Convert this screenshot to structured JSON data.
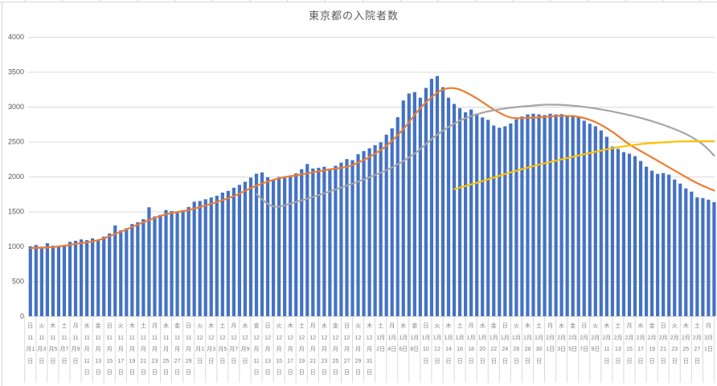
{
  "chart_data": {
    "type": "combo_bar_line",
    "title": "東京都の入院者数",
    "legend": "none",
    "grid": "horizontal",
    "y_axis": {
      "min": 0,
      "max": 4000,
      "tick_interval": 500,
      "ticks": [
        0,
        500,
        1000,
        1500,
        2000,
        2500,
        3000,
        3500,
        4000
      ]
    },
    "x_axis": {
      "label_every_n_bars": 2,
      "labels": [
        "日 11月1日",
        "火 11月3日",
        "木 11月5日",
        "土 11月7日",
        "月 11月9日",
        "水 11月11日",
        "金 11月13日",
        "日 11月15日",
        "火 11月17日",
        "木 11月19日",
        "土 11月21日",
        "月 11月23日",
        "水 11月25日",
        "金 11月27日",
        "日 11月29日",
        "火 12月1日",
        "木 12月3日",
        "土 12月5日",
        "月 12月7日",
        "水 12月9日",
        "金 12月11日",
        "日 12月13日",
        "火 12月15日",
        "木 12月17日",
        "土 12月19日",
        "月 12月21日",
        "水 12月23日",
        "金 12月25日",
        "日 12月27日",
        "火 12月29日",
        "木 12月31日",
        "土 1月2日",
        "月 1月4日",
        "水 1月6日",
        "金 1月8日",
        "日 1月10日",
        "火 1月12日",
        "木 1月14日",
        "土 1月16日",
        "月 1月18日",
        "水 1月20日",
        "金 1月22日",
        "日 1月24日",
        "火 1月26日",
        "木 1月28日",
        "土 1月30日",
        "月 2月1日",
        "水 2月3日",
        "金 2月5日",
        "日 2月7日",
        "火 2月9日",
        "木 2月11日",
        "土 2月13日",
        "月 2月15日",
        "水 2月17日",
        "金 2月19日",
        "日 2月21日",
        "火 2月23日",
        "木 2月25日",
        "土 2月27日",
        "月 3月1日"
      ]
    },
    "bars": {
      "color": "#4472C4",
      "values": [
        1000,
        1020,
        995,
        1045,
        1010,
        1000,
        1015,
        1065,
        1080,
        1100,
        1090,
        1115,
        1085,
        1140,
        1185,
        1300,
        1230,
        1260,
        1320,
        1345,
        1390,
        1560,
        1430,
        1450,
        1520,
        1505,
        1480,
        1520,
        1565,
        1640,
        1650,
        1675,
        1700,
        1725,
        1770,
        1795,
        1840,
        1880,
        1925,
        1985,
        2040,
        2060,
        1990,
        1960,
        1995,
        2005,
        2015,
        2045,
        2105,
        2180,
        2115,
        2125,
        2140,
        2115,
        2155,
        2200,
        2250,
        2235,
        2320,
        2365,
        2405,
        2450,
        2490,
        2600,
        2690,
        2850,
        3090,
        3190,
        3210,
        3130,
        3270,
        3400,
        3440,
        3280,
        3130,
        3040,
        2980,
        2920,
        2960,
        2900,
        2846,
        2812,
        2730,
        2700,
        2720,
        2760,
        2820,
        2860,
        2890,
        2900,
        2890,
        2880,
        2900,
        2890,
        2895,
        2870,
        2880,
        2845,
        2800,
        2757,
        2720,
        2660,
        2570,
        2430,
        2396,
        2350,
        2327,
        2292,
        2223,
        2142,
        2084,
        2038,
        2050,
        2027,
        1957,
        1899,
        1830,
        1784,
        1703,
        1692,
        1669,
        1634
      ]
    },
    "series": [
      {
        "id": "orange-line",
        "color": "#ED7D31",
        "points": [
          [
            0,
            975
          ],
          [
            4,
            990
          ],
          [
            8,
            1035
          ],
          [
            12,
            1090
          ],
          [
            16,
            1210
          ],
          [
            20,
            1345
          ],
          [
            24,
            1460
          ],
          [
            28,
            1520
          ],
          [
            32,
            1610
          ],
          [
            36,
            1720
          ],
          [
            40,
            1870
          ],
          [
            44,
            1975
          ],
          [
            48,
            2030
          ],
          [
            52,
            2090
          ],
          [
            56,
            2140
          ],
          [
            58,
            2200
          ],
          [
            60,
            2280
          ],
          [
            63,
            2440
          ],
          [
            66,
            2680
          ],
          [
            69,
            2980
          ],
          [
            72,
            3200
          ],
          [
            74,
            3265
          ],
          [
            76,
            3245
          ],
          [
            79,
            3120
          ],
          [
            82,
            2960
          ],
          [
            85,
            2845
          ],
          [
            88,
            2840
          ],
          [
            91,
            2855
          ],
          [
            94,
            2870
          ],
          [
            97,
            2855
          ],
          [
            100,
            2780
          ],
          [
            103,
            2640
          ],
          [
            106,
            2460
          ],
          [
            109,
            2320
          ],
          [
            112,
            2180
          ],
          [
            115,
            2040
          ],
          [
            118,
            1905
          ],
          [
            121,
            1800
          ]
        ]
      },
      {
        "id": "gray-line",
        "color": "#A5A5A5",
        "points": [
          [
            40,
            1750
          ],
          [
            42,
            1610
          ],
          [
            44,
            1570
          ],
          [
            48,
            1660
          ],
          [
            52,
            1760
          ],
          [
            56,
            1870
          ],
          [
            60,
            1990
          ],
          [
            64,
            2130
          ],
          [
            68,
            2330
          ],
          [
            72,
            2600
          ],
          [
            76,
            2800
          ],
          [
            80,
            2915
          ],
          [
            84,
            2975
          ],
          [
            88,
            3010
          ],
          [
            92,
            3030
          ],
          [
            96,
            3015
          ],
          [
            100,
            2975
          ],
          [
            104,
            2915
          ],
          [
            108,
            2840
          ],
          [
            112,
            2740
          ],
          [
            116,
            2610
          ],
          [
            119,
            2460
          ],
          [
            121,
            2300
          ]
        ]
      },
      {
        "id": "yellow-line",
        "color": "#FFC000",
        "points": [
          [
            75,
            1820
          ],
          [
            80,
            1935
          ],
          [
            85,
            2060
          ],
          [
            90,
            2170
          ],
          [
            95,
            2265
          ],
          [
            100,
            2355
          ],
          [
            104,
            2420
          ],
          [
            108,
            2465
          ],
          [
            112,
            2490
          ],
          [
            116,
            2505
          ],
          [
            121,
            2505
          ]
        ]
      }
    ]
  },
  "frame": {
    "background": "#FFFFFF",
    "gridline_color": "#D9D9D9",
    "tick_separator_color": "#D9D9D9",
    "axis_text_color": "#595959",
    "x_label_text_color": "#7F7F7F",
    "title_color": "#595959",
    "sheet_line_color": "#D6D6D6"
  }
}
